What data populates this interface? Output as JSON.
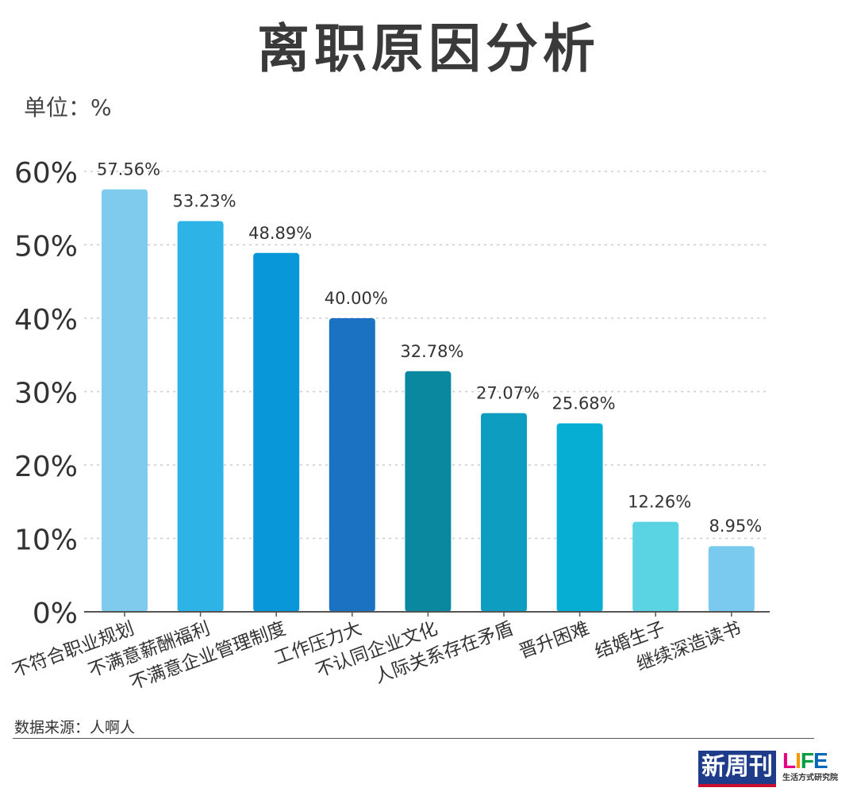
{
  "title": "离职原因分析",
  "unit_label": "单位：%",
  "footer": {
    "source": "数据来源：人啊人",
    "brand_main": "新周刊",
    "brand_life": "LIFE",
    "brand_life_sub": "生活方式研究院"
  },
  "colors": {
    "bars": [
      "#7ecbee",
      "#2eb3e6",
      "#0897d8",
      "#1b72c2",
      "#0a889f",
      "#0d9dc1",
      "#06aed3",
      "#5ad3e3",
      "#79caee"
    ],
    "grid": "#cccccc",
    "axis": "#555555",
    "text": "#333333"
  },
  "chart_data": {
    "type": "bar",
    "title": "离职原因分析",
    "unit": "%",
    "categories": [
      "不符合职业规划",
      "不满意薪酬福利",
      "不满意企业管理制度",
      "工作压力大",
      "不认同企业文化",
      "人际关系存在矛盾",
      "晋升困难",
      "结婚生子",
      "继续深造读书"
    ],
    "values": [
      57.56,
      53.23,
      48.89,
      40.0,
      32.78,
      27.07,
      25.68,
      12.26,
      8.95
    ],
    "value_labels": [
      "57.56%",
      "53.23%",
      "48.89%",
      "40.00%",
      "32.78%",
      "27.07%",
      "25.68%",
      "12.26%",
      "8.95%"
    ],
    "yticks": [
      "0%",
      "10%",
      "20%",
      "30%",
      "40%",
      "50%",
      "60%"
    ],
    "ytick_values": [
      0,
      10,
      20,
      30,
      40,
      50,
      60
    ],
    "ylim": [
      0,
      60
    ],
    "grid": true
  }
}
